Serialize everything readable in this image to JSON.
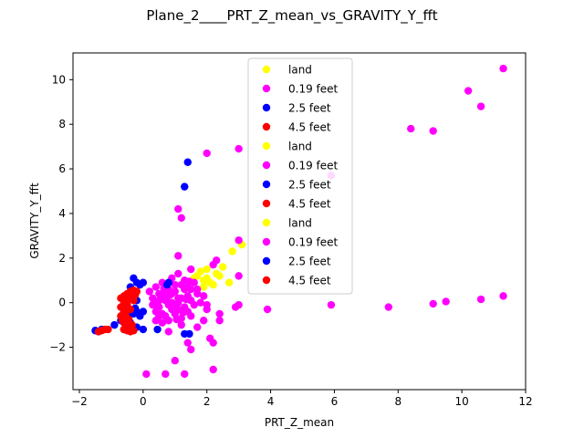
{
  "chart_data": {
    "type": "scatter",
    "title": "Plane_2____PRT_Z_mean_vs_GRAVITY_Y_fft",
    "xlabel": "PRT_Z_mean",
    "ylabel": "GRAVITY_Y_fft",
    "xlim": [
      -2.2,
      12.0
    ],
    "ylim": [
      -3.9,
      11.2
    ],
    "xticks": [
      -2,
      0,
      2,
      4,
      6,
      8,
      10,
      12
    ],
    "yticks": [
      -2,
      0,
      2,
      4,
      6,
      8,
      10
    ],
    "grid": false,
    "legend_position": "top-center",
    "legend": [
      {
        "label": "land",
        "color": "#ffff00"
      },
      {
        "label": "0.19 feet",
        "color": "#ff00ff"
      },
      {
        "label": "2.5 feet",
        "color": "#0000ff"
      },
      {
        "label": "4.5 feet",
        "color": "#ff0000"
      },
      {
        "label": "land",
        "color": "#ffff00"
      },
      {
        "label": "0.19 feet",
        "color": "#ff00ff"
      },
      {
        "label": "2.5 feet",
        "color": "#0000ff"
      },
      {
        "label": "4.5 feet",
        "color": "#ff0000"
      },
      {
        "label": "land",
        "color": "#ffff00"
      },
      {
        "label": "0.19 feet",
        "color": "#ff00ff"
      },
      {
        "label": "2.5 feet",
        "color": "#0000ff"
      },
      {
        "label": "4.5 feet",
        "color": "#ff0000"
      }
    ],
    "series": [
      {
        "name": "land",
        "color": "#ffff00",
        "points": [
          [
            1.7,
            1.2
          ],
          [
            1.9,
            1.0
          ],
          [
            2.0,
            1.1
          ],
          [
            2.1,
            0.9
          ],
          [
            2.3,
            1.3
          ],
          [
            1.8,
            1.4
          ],
          [
            2.2,
            0.8
          ],
          [
            2.5,
            1.6
          ],
          [
            2.8,
            2.3
          ],
          [
            3.1,
            2.6
          ],
          [
            2.7,
            0.9
          ],
          [
            1.6,
            1.1
          ],
          [
            2.0,
            1.5
          ],
          [
            2.4,
            1.2
          ],
          [
            1.9,
            0.7
          ]
        ]
      },
      {
        "name": "0.19 feet",
        "color": "#ff00ff",
        "points": [
          [
            11.3,
            10.5
          ],
          [
            10.2,
            9.5
          ],
          [
            10.6,
            8.8
          ],
          [
            8.4,
            7.8
          ],
          [
            9.1,
            7.7
          ],
          [
            3.0,
            6.9
          ],
          [
            2.0,
            6.7
          ],
          [
            5.9,
            5.7
          ],
          [
            1.1,
            4.2
          ],
          [
            1.2,
            3.8
          ],
          [
            3.0,
            2.8
          ],
          [
            1.1,
            2.1
          ],
          [
            2.3,
            1.9
          ],
          [
            2.2,
            1.7
          ],
          [
            1.5,
            1.5
          ],
          [
            3.0,
            1.2
          ],
          [
            11.3,
            0.3
          ],
          [
            10.6,
            0.15
          ],
          [
            9.5,
            0.05
          ],
          [
            9.1,
            -0.05
          ],
          [
            5.9,
            -0.1
          ],
          [
            3.0,
            -0.1
          ],
          [
            2.9,
            -0.2
          ],
          [
            7.7,
            -0.2
          ],
          [
            3.9,
            -0.3
          ],
          [
            2.0,
            -0.3
          ],
          [
            2.4,
            -0.5
          ],
          [
            2.4,
            -0.8
          ],
          [
            1.9,
            -0.8
          ],
          [
            1.7,
            -1.1
          ],
          [
            1.2,
            -1.0
          ],
          [
            0.8,
            -1.3
          ],
          [
            2.1,
            -1.6
          ],
          [
            2.2,
            -1.8
          ],
          [
            1.4,
            -1.8
          ],
          [
            1.5,
            -2.1
          ],
          [
            1.0,
            -2.6
          ],
          [
            0.1,
            -3.2
          ],
          [
            0.7,
            -3.2
          ],
          [
            1.3,
            -3.2
          ],
          [
            2.2,
            -3.0
          ],
          [
            0.4,
            0.7
          ],
          [
            0.5,
            0.4
          ],
          [
            0.6,
            0.9
          ],
          [
            0.7,
            0.1
          ],
          [
            0.8,
            0.6
          ],
          [
            0.9,
            -0.3
          ],
          [
            1.0,
            0.5
          ],
          [
            1.1,
            0.2
          ],
          [
            1.2,
            0.8
          ],
          [
            1.3,
            -0.2
          ],
          [
            1.4,
            0.3
          ],
          [
            1.5,
            0.6
          ],
          [
            1.6,
            -0.1
          ],
          [
            1.7,
            0.4
          ],
          [
            1.8,
            0.0
          ],
          [
            0.3,
            0.2
          ],
          [
            0.4,
            -0.4
          ],
          [
            0.5,
            -0.2
          ],
          [
            0.6,
            0.3
          ],
          [
            0.7,
            -0.6
          ],
          [
            0.8,
            -0.1
          ],
          [
            0.9,
            0.4
          ],
          [
            1.0,
            -0.5
          ],
          [
            1.1,
            0.0
          ],
          [
            1.2,
            -0.7
          ],
          [
            1.3,
            0.6
          ],
          [
            1.4,
            -0.4
          ],
          [
            1.5,
            0.1
          ],
          [
            1.6,
            0.9
          ],
          [
            0.2,
            0.5
          ],
          [
            0.3,
            -0.1
          ],
          [
            0.5,
            0.1
          ],
          [
            0.6,
            -0.5
          ],
          [
            0.7,
            0.5
          ],
          [
            0.8,
            -0.8
          ],
          [
            0.9,
            0.0
          ],
          [
            1.0,
            0.8
          ],
          [
            1.1,
            -0.3
          ],
          [
            1.2,
            0.2
          ],
          [
            1.3,
            1.0
          ],
          [
            1.4,
            0.7
          ],
          [
            1.5,
            -0.6
          ],
          [
            0.4,
            -0.8
          ],
          [
            0.6,
            -0.9
          ],
          [
            0.9,
            1.1
          ],
          [
            1.1,
            1.3
          ],
          [
            1.7,
            0.6
          ],
          [
            1.9,
            0.3
          ],
          [
            2.0,
            -0.1
          ],
          [
            0.5,
            -0.6
          ],
          [
            0.75,
            0.25
          ],
          [
            0.95,
            -0.15
          ],
          [
            1.25,
            -0.45
          ],
          [
            1.45,
            0.95
          ],
          [
            0.35,
            0.05
          ],
          [
            0.65,
            0.65
          ],
          [
            0.85,
            0.35
          ],
          [
            1.05,
            -0.75
          ],
          [
            1.35,
            0.15
          ]
        ]
      },
      {
        "name": "2.5 feet",
        "color": "#0000ff",
        "points": [
          [
            1.4,
            6.3
          ],
          [
            1.3,
            5.2
          ],
          [
            0.8,
            0.9
          ],
          [
            0.75,
            0.8
          ],
          [
            1.3,
            -1.4
          ],
          [
            1.45,
            -1.4
          ],
          [
            0.45,
            -1.2
          ],
          [
            0.0,
            -1.2
          ],
          [
            -1.4,
            -1.3
          ],
          [
            -1.5,
            -1.25
          ],
          [
            -1.3,
            -1.2
          ],
          [
            -0.9,
            -1.0
          ],
          [
            -0.7,
            -0.8
          ],
          [
            -0.5,
            -0.6
          ],
          [
            -0.3,
            -0.5
          ],
          [
            -0.2,
            -0.4
          ],
          [
            0.0,
            -0.4
          ],
          [
            -0.1,
            -0.6
          ],
          [
            -0.3,
            1.1
          ],
          [
            -0.2,
            0.9
          ],
          [
            -0.1,
            0.8
          ],
          [
            0.0,
            0.9
          ],
          [
            -0.4,
            0.7
          ],
          [
            -0.3,
            0.3
          ],
          [
            -0.2,
            0.1
          ],
          [
            -0.5,
            -0.2
          ],
          [
            -0.6,
            -0.4
          ],
          [
            -0.4,
            -0.9
          ],
          [
            -0.2,
            -1.1
          ],
          [
            -0.6,
            -1.2
          ],
          [
            -0.35,
            0.55
          ],
          [
            -0.25,
            -0.25
          ]
        ]
      },
      {
        "name": "4.5 feet",
        "color": "#ff0000",
        "points": [
          [
            -1.2,
            -1.2
          ],
          [
            -1.3,
            -1.25
          ],
          [
            -1.4,
            -1.3
          ],
          [
            -1.1,
            -1.2
          ],
          [
            -0.6,
            -1.2
          ],
          [
            -0.5,
            -1.25
          ],
          [
            -0.4,
            -1.3
          ],
          [
            -0.3,
            -1.25
          ],
          [
            -0.6,
            -0.9
          ],
          [
            -0.7,
            -0.6
          ],
          [
            -0.6,
            -0.4
          ],
          [
            -0.7,
            -0.2
          ],
          [
            -0.6,
            0.0
          ],
          [
            -0.7,
            0.2
          ],
          [
            -0.6,
            0.3
          ],
          [
            -0.5,
            0.4
          ],
          [
            -0.4,
            0.5
          ],
          [
            -0.3,
            0.55
          ],
          [
            -0.2,
            0.5
          ],
          [
            -0.4,
            0.3
          ],
          [
            -0.5,
            0.1
          ],
          [
            -0.5,
            -0.1
          ],
          [
            -0.4,
            -0.3
          ],
          [
            -0.55,
            -0.55
          ],
          [
            -0.45,
            -0.75
          ],
          [
            -0.35,
            -1.0
          ],
          [
            -0.3,
            0.1
          ],
          [
            -0.25,
            0.35
          ],
          [
            -0.65,
            -0.8
          ],
          [
            -0.5,
            -1.05
          ]
        ]
      }
    ]
  }
}
